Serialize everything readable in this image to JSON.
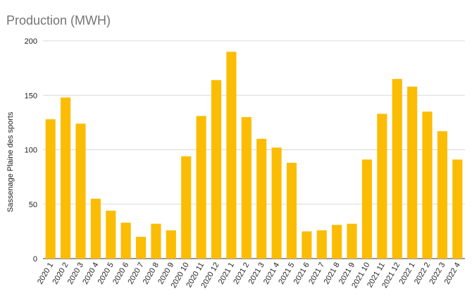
{
  "chart_data": {
    "type": "bar",
    "title": "Production (MWH)",
    "xlabel": "",
    "ylabel": "Sassenage Plaine des sports",
    "ylim": [
      0,
      200
    ],
    "yticks": [
      "0",
      "50",
      "100",
      "150",
      "200"
    ],
    "grid": true,
    "bar_color": "#fbbc04",
    "categories": [
      "2020 1",
      "2020 2",
      "2020 3",
      "2020 4",
      "2020 5",
      "2020 6",
      "2020 7",
      "2020 8",
      "2020 9",
      "2020 10",
      "2020 11",
      "2020 12",
      "2021 1",
      "2021 2",
      "2021 3",
      "2021 4",
      "2021 5",
      "2021 6",
      "2021 7",
      "2021 8",
      "2021 9",
      "2021 10",
      "2021 11",
      "2021 12",
      "2022 1",
      "2022 2",
      "2022 3",
      "2022 4"
    ],
    "values": [
      128,
      148,
      124,
      55,
      44,
      33,
      20,
      32,
      26,
      94,
      131,
      164,
      190,
      130,
      110,
      102,
      88,
      25,
      26,
      31,
      32,
      91,
      133,
      165,
      158,
      135,
      117,
      91
    ]
  }
}
